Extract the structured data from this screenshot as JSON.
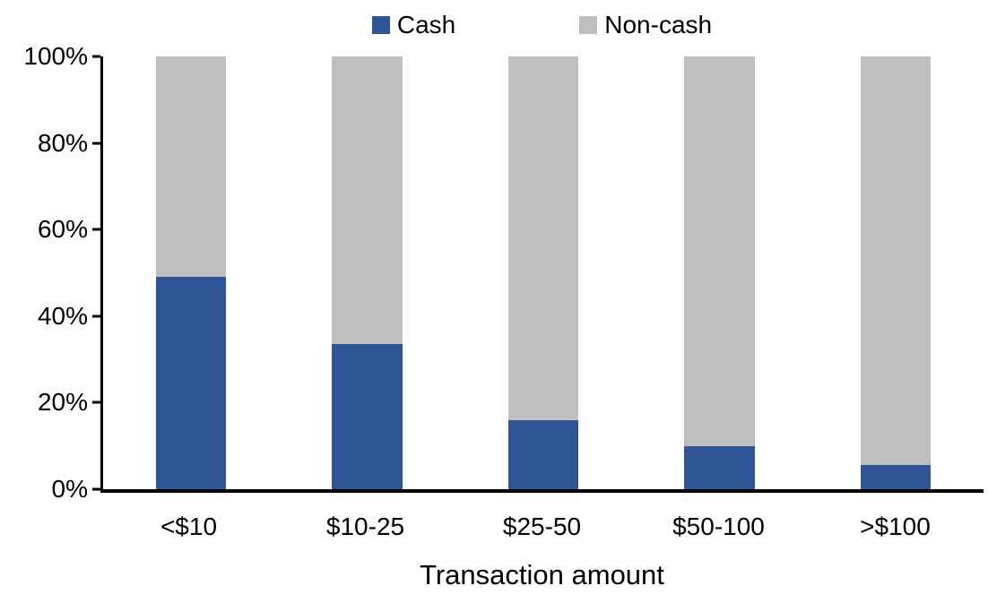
{
  "chart_data": {
    "type": "bar",
    "stacked": true,
    "percent_stacked": true,
    "title": "",
    "xlabel": "Transaction amount",
    "ylabel": "",
    "categories": [
      "<$10",
      "$10-25",
      "$25-50",
      "$50-100",
      ">$100"
    ],
    "series": [
      {
        "name": "Cash",
        "color": "#2F5597",
        "values": [
          49,
          33.5,
          16,
          10,
          5.5
        ]
      },
      {
        "name": "Non-cash",
        "color": "#BFBFBF",
        "values": [
          51,
          66.5,
          84,
          90,
          94.5
        ]
      }
    ],
    "y_ticks": [
      "0%",
      "20%",
      "40%",
      "60%",
      "80%",
      "100%"
    ],
    "ylim": [
      0,
      100
    ],
    "legend_position": "top",
    "grid": false,
    "axis_color": "#000000"
  }
}
